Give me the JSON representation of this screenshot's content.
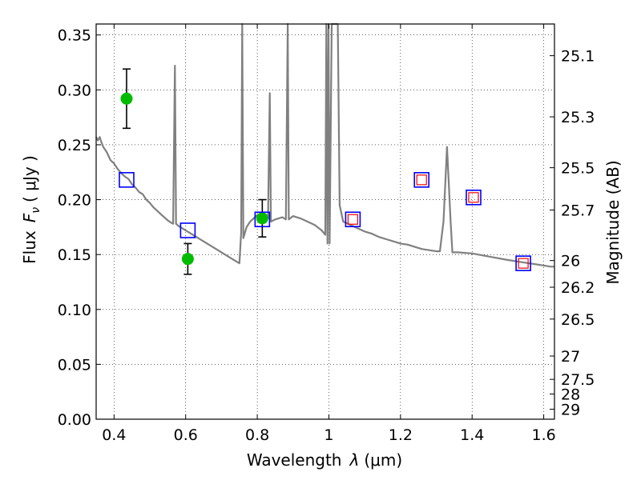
{
  "chart_data": {
    "type": "scatter",
    "xlabel_prefix": "Wavelength",
    "xlabel_symbol": "λ",
    "xlabel_unit": "(μm)",
    "ylabel_prefix": "Flux",
    "ylabel_symbol": "F",
    "ylabel_subscript": "ν",
    "ylabel_unit": "( μJy )",
    "y2label": "Magnitude (AB)",
    "xlim": [
      0.35,
      1.63
    ],
    "ylim": [
      0.0,
      0.36
    ],
    "xticks": [
      {
        "value": 0.4,
        "label": "0.4"
      },
      {
        "value": 0.6,
        "label": "0.6"
      },
      {
        "value": 0.8,
        "label": "0.8"
      },
      {
        "value": 1.0,
        "label": "1"
      },
      {
        "value": 1.2,
        "label": "1.2"
      },
      {
        "value": 1.4,
        "label": "1.4"
      },
      {
        "value": 1.6,
        "label": "1.6"
      }
    ],
    "yticks": [
      {
        "value": 0.0,
        "label": "0.00"
      },
      {
        "value": 0.05,
        "label": "0.05"
      },
      {
        "value": 0.1,
        "label": "0.10"
      },
      {
        "value": 0.15,
        "label": "0.15"
      },
      {
        "value": 0.2,
        "label": "0.20"
      },
      {
        "value": 0.25,
        "label": "0.25"
      },
      {
        "value": 0.3,
        "label": "0.30"
      },
      {
        "value": 0.35,
        "label": "0.35"
      }
    ],
    "y2ticks": [
      {
        "value": 25.1,
        "label": "25.1"
      },
      {
        "value": 25.3,
        "label": "25.3"
      },
      {
        "value": 25.5,
        "label": "25.5"
      },
      {
        "value": 25.7,
        "label": "25.7"
      },
      {
        "value": 26.0,
        "label": "26"
      },
      {
        "value": 26.2,
        "label": "26.2"
      },
      {
        "value": 26.5,
        "label": "26.5"
      },
      {
        "value": 27.0,
        "label": "27"
      },
      {
        "value": 27.5,
        "label": "27.5"
      },
      {
        "value": 28.0,
        "label": "28"
      },
      {
        "value": 29.0,
        "label": "29"
      }
    ],
    "grid": true,
    "colors": {
      "model": "#808080",
      "observed": "#00bb00",
      "errorbar": "#000000",
      "model_phot": "#0000ff",
      "red_square": "#ff0000"
    },
    "observed_points": [
      {
        "x": 0.435,
        "y": 0.292,
        "yerr": 0.027
      },
      {
        "x": 0.606,
        "y": 0.146,
        "yerr": 0.014
      },
      {
        "x": 0.814,
        "y": 0.183,
        "yerr": 0.017
      }
    ],
    "model_photometry": [
      {
        "x": 0.435,
        "y": 0.218,
        "inner": false
      },
      {
        "x": 0.606,
        "y": 0.172,
        "inner": false
      },
      {
        "x": 0.814,
        "y": 0.182,
        "inner": false
      },
      {
        "x": 1.067,
        "y": 0.182,
        "inner": true
      },
      {
        "x": 1.259,
        "y": 0.218,
        "inner": true
      },
      {
        "x": 1.404,
        "y": 0.202,
        "inner": true
      },
      {
        "x": 1.543,
        "y": 0.142,
        "inner": true
      }
    ],
    "model_spectrum": [
      [
        0.35,
        0.257
      ],
      [
        0.355,
        0.254
      ],
      [
        0.36,
        0.257
      ],
      [
        0.365,
        0.252
      ],
      [
        0.37,
        0.248
      ],
      [
        0.38,
        0.243
      ],
      [
        0.39,
        0.236
      ],
      [
        0.4,
        0.233
      ],
      [
        0.41,
        0.228
      ],
      [
        0.42,
        0.224
      ],
      [
        0.43,
        0.221
      ],
      [
        0.44,
        0.219
      ],
      [
        0.45,
        0.214
      ],
      [
        0.46,
        0.211
      ],
      [
        0.47,
        0.207
      ],
      [
        0.48,
        0.205
      ],
      [
        0.49,
        0.2
      ],
      [
        0.5,
        0.197
      ],
      [
        0.51,
        0.193
      ],
      [
        0.52,
        0.19
      ],
      [
        0.53,
        0.187
      ],
      [
        0.54,
        0.184
      ],
      [
        0.55,
        0.181
      ],
      [
        0.56,
        0.179
      ],
      [
        0.565,
        0.178
      ],
      [
        0.57,
        0.322
      ],
      [
        0.573,
        0.178
      ],
      [
        0.58,
        0.176
      ],
      [
        0.59,
        0.174
      ],
      [
        0.6,
        0.172
      ],
      [
        0.62,
        0.168
      ],
      [
        0.64,
        0.164
      ],
      [
        0.66,
        0.16
      ],
      [
        0.68,
        0.156
      ],
      [
        0.7,
        0.152
      ],
      [
        0.72,
        0.148
      ],
      [
        0.74,
        0.144
      ],
      [
        0.75,
        0.142
      ],
      [
        0.755,
        0.17
      ],
      [
        0.758,
        0.36
      ],
      [
        0.761,
        0.165
      ],
      [
        0.77,
        0.175
      ],
      [
        0.78,
        0.18
      ],
      [
        0.79,
        0.183
      ],
      [
        0.8,
        0.186
      ],
      [
        0.81,
        0.187
      ],
      [
        0.82,
        0.185
      ],
      [
        0.83,
        0.183
      ],
      [
        0.835,
        0.297
      ],
      [
        0.838,
        0.18
      ],
      [
        0.85,
        0.182
      ],
      [
        0.86,
        0.183
      ],
      [
        0.87,
        0.184
      ],
      [
        0.88,
        0.182
      ],
      [
        0.885,
        0.36
      ],
      [
        0.888,
        0.182
      ],
      [
        0.9,
        0.185
      ],
      [
        0.92,
        0.183
      ],
      [
        0.94,
        0.18
      ],
      [
        0.96,
        0.177
      ],
      [
        0.98,
        0.172
      ],
      [
        0.99,
        0.168
      ],
      [
        0.993,
        0.36
      ],
      [
        0.996,
        0.16
      ],
      [
        0.999,
        0.36
      ],
      [
        1.002,
        0.16
      ],
      [
        1.008,
        0.36
      ],
      [
        1.025,
        0.36
      ],
      [
        1.03,
        0.195
      ],
      [
        1.04,
        0.18
      ],
      [
        1.06,
        0.177
      ],
      [
        1.08,
        0.174
      ],
      [
        1.1,
        0.171
      ],
      [
        1.12,
        0.169
      ],
      [
        1.14,
        0.166
      ],
      [
        1.16,
        0.164
      ],
      [
        1.18,
        0.162
      ],
      [
        1.2,
        0.16
      ],
      [
        1.22,
        0.159
      ],
      [
        1.24,
        0.157
      ],
      [
        1.26,
        0.155
      ],
      [
        1.28,
        0.154
      ],
      [
        1.3,
        0.153
      ],
      [
        1.31,
        0.153
      ],
      [
        1.32,
        0.18
      ],
      [
        1.33,
        0.248
      ],
      [
        1.34,
        0.18
      ],
      [
        1.345,
        0.152
      ],
      [
        1.36,
        0.152
      ],
      [
        1.4,
        0.151
      ],
      [
        1.45,
        0.148
      ],
      [
        1.5,
        0.145
      ],
      [
        1.54,
        0.143
      ],
      [
        1.58,
        0.141
      ],
      [
        1.6,
        0.14
      ],
      [
        1.62,
        0.139
      ],
      [
        1.63,
        0.139
      ]
    ]
  }
}
